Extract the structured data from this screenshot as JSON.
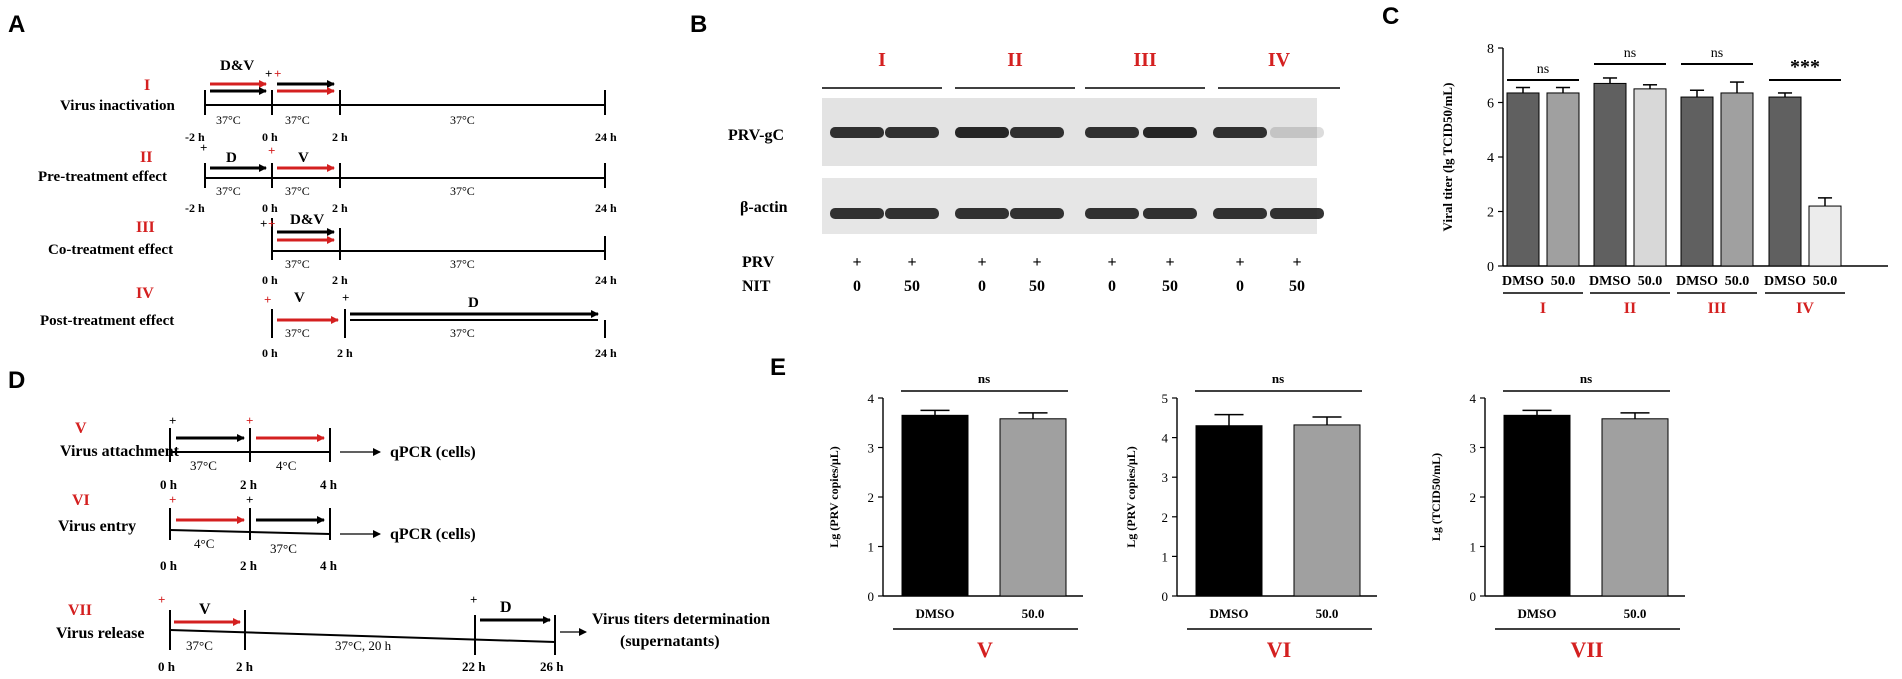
{
  "panels": {
    "a": "A",
    "b": "B",
    "c": "C",
    "d": "D",
    "e": "E"
  },
  "panel_a": {
    "rows": [
      {
        "roman": "I",
        "name": "Virus inactivation",
        "pre_label": "D&V",
        "post_label": "",
        "pre_mark": "+",
        "pre_mark_red": "+",
        "mid_mark": "",
        "temp1": "37°C",
        "temp2": "37°C",
        "temp3": "37°C",
        "t0": "-2 h",
        "t1": "0 h",
        "t2": "2 h",
        "t3": "24 h"
      },
      {
        "roman": "II",
        "name": "Pre-treatment effect",
        "pre_label": "D",
        "post_label": "V",
        "pre_mark": "+",
        "mid_mark": "+",
        "temp1": "37°C",
        "temp2": "37°C",
        "temp3": "37°C",
        "t0": "-2 h",
        "t1": "0 h",
        "t2": "2 h",
        "t3": "24 h"
      },
      {
        "roman": "III",
        "name": "Co-treatment effect",
        "pre_label": "D&V",
        "marks": "+",
        "temp2": "37°C",
        "temp3": "37°C",
        "t1": "0 h",
        "t2": "2 h",
        "t3": "24 h"
      },
      {
        "roman": "IV",
        "name": "Post-treatment effect",
        "pre_label": "V",
        "post_label": "D",
        "mark1": "+",
        "mark2": "+",
        "temp2": "37°C",
        "temp3": "37°C",
        "t1": "0 h",
        "t2": "2 h",
        "t3": "24 h"
      }
    ]
  },
  "panel_b": {
    "groups": [
      "I",
      "II",
      "III",
      "IV"
    ],
    "bands": [
      "PRV-gC",
      "β-actin"
    ],
    "row_labels": [
      "PRV",
      "NIT"
    ],
    "prv": [
      "+",
      "+",
      "+",
      "+",
      "+",
      "+",
      "+",
      "+"
    ],
    "nit": [
      "0",
      "50",
      "0",
      "50",
      "0",
      "50",
      "0",
      "50"
    ],
    "gc_intensity": [
      0.85,
      0.85,
      0.9,
      0.85,
      0.85,
      0.9,
      0.85,
      0.15
    ],
    "actin_intensity": [
      0.85,
      0.85,
      0.85,
      0.85,
      0.85,
      0.85,
      0.85,
      0.85
    ]
  },
  "panel_d": {
    "v": {
      "roman": "V",
      "name": "Virus attachment",
      "temp1": "37°C",
      "temp2": "4°C",
      "t0": "0 h",
      "t1": "2 h",
      "t2": "4 h",
      "out": "qPCR (cells)",
      "mark1": "+",
      "mark2": "+"
    },
    "vi": {
      "roman": "VI",
      "name": "Virus entry",
      "temp1": "4°C",
      "temp2": "37°C",
      "t0": "0 h",
      "t1": "2 h",
      "t2": "4 h",
      "out": "qPCR (cells)",
      "mark1": "+",
      "mark2": "+"
    },
    "vii": {
      "roman": "VII",
      "name": "Virus release",
      "label1": "V",
      "label2": "D",
      "temp1": "37°C",
      "temp2": "37°C, 20 h",
      "t0": "0 h",
      "t1": "2 h",
      "t2": "22 h",
      "t3": "26 h",
      "out1": "Virus titers determination",
      "out2": "(supernatants)",
      "mark1": "+",
      "mark2": "+"
    }
  },
  "chart_data": [
    {
      "type": "bar",
      "panel": "C",
      "ylabel": "Viral titer (lg TCID50/mL)",
      "ylim": [
        0,
        8
      ],
      "yticks": [
        "0",
        "2",
        "4",
        "6",
        "8"
      ],
      "categories": [
        "DMSO",
        "50.0",
        "DMSO",
        "50.0",
        "DMSO",
        "50.0",
        "DMSO",
        "50.0"
      ],
      "groups": [
        "I",
        "II",
        "III",
        "IV"
      ],
      "values": [
        6.35,
        6.35,
        6.7,
        6.5,
        6.2,
        6.35,
        6.2,
        2.2
      ],
      "errors": [
        0.2,
        0.2,
        0.2,
        0.15,
        0.25,
        0.4,
        0.15,
        0.3
      ],
      "colors": [
        "#606060",
        "#a0a0a0",
        "#606060",
        "#d8d8d8",
        "#606060",
        "#a0a0a0",
        "#606060",
        "#ececec"
      ],
      "significance": [
        "ns",
        "ns",
        "ns",
        "***"
      ]
    },
    {
      "type": "bar",
      "panel": "E-V",
      "ylabel": "Lg (PRV copies/μL)",
      "ylim": [
        0,
        4
      ],
      "yticks": [
        "0",
        "1",
        "2",
        "3",
        "4"
      ],
      "categories": [
        "DMSO",
        "50.0"
      ],
      "values": [
        3.65,
        3.58
      ],
      "errors": [
        0.1,
        0.12
      ],
      "colors": [
        "#000000",
        "#a0a0a0"
      ],
      "significance": "ns",
      "group": "V"
    },
    {
      "type": "bar",
      "panel": "E-VI",
      "ylabel": "Lg (PRV copies/μL)",
      "ylim": [
        0,
        5
      ],
      "yticks": [
        "0",
        "1",
        "2",
        "3",
        "4",
        "5"
      ],
      "categories": [
        "DMSO",
        "50.0"
      ],
      "values": [
        4.3,
        4.32
      ],
      "errors": [
        0.28,
        0.2
      ],
      "colors": [
        "#000000",
        "#a0a0a0"
      ],
      "significance": "ns",
      "group": "VI"
    },
    {
      "type": "bar",
      "panel": "E-VII",
      "ylabel": "Lg (TCID50/mL)",
      "ylim": [
        0,
        4
      ],
      "yticks": [
        "0",
        "1",
        "2",
        "3",
        "4"
      ],
      "categories": [
        "DMSO",
        "50.0"
      ],
      "values": [
        3.65,
        3.58
      ],
      "errors": [
        0.1,
        0.12
      ],
      "colors": [
        "#000000",
        "#a0a0a0"
      ],
      "significance": "ns",
      "group": "VII"
    }
  ]
}
